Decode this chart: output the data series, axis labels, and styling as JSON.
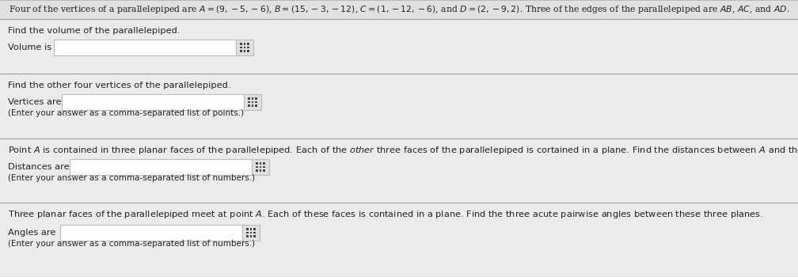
{
  "bg_color": "#ebebeb",
  "header_bg": "#e0e0e0",
  "white": "#ffffff",
  "border_color": "#bbbbbb",
  "sep_color": "#999999",
  "text_color": "#222222",
  "icon_bg": "#e0e0e0",
  "icon_color": "#444444",
  "figsize": [
    10.08,
    3.5
  ],
  "dpi": 100,
  "header_line": "Four of the vertices of a parallelepiped are $A = (9, -5, -6)$, $B = (15, -3, -12)$, $C = (1, -12, -6)$, and $D = (2, -9, 2)$. Three of the edges of the parallelepiped are $AB$, $AC$, and $AD$.",
  "s1_q": "Find the volume of the parallelepiped.",
  "s1_label": "Volume is",
  "s2_q": "Find the other four vertices of the parallelepiped.",
  "s2_label": "Vertices are",
  "s2_hint": "(Enter your answer as a comma-separated list of points.)",
  "s3_q": "Point $A$ is contained in three planar faces of the parallelepiped. Each of the $\\mathit{other}$ three faces of the parallelepiped is cortained in a plane. Find the distances between $A$ and these three planes.",
  "s3_label": "Distances are",
  "s3_hint": "(Enter your answer as a comma-separated list of numbers.)",
  "s4_q": "Three planar faces of the parallelepiped meet at point $A$. Each of these faces is contained in a plane. Find the three acute pairwise angles between these three planes.",
  "s4_label": "Angles are",
  "s4_hint": "(Enter your answer as a comma-separated list of numbers.)"
}
